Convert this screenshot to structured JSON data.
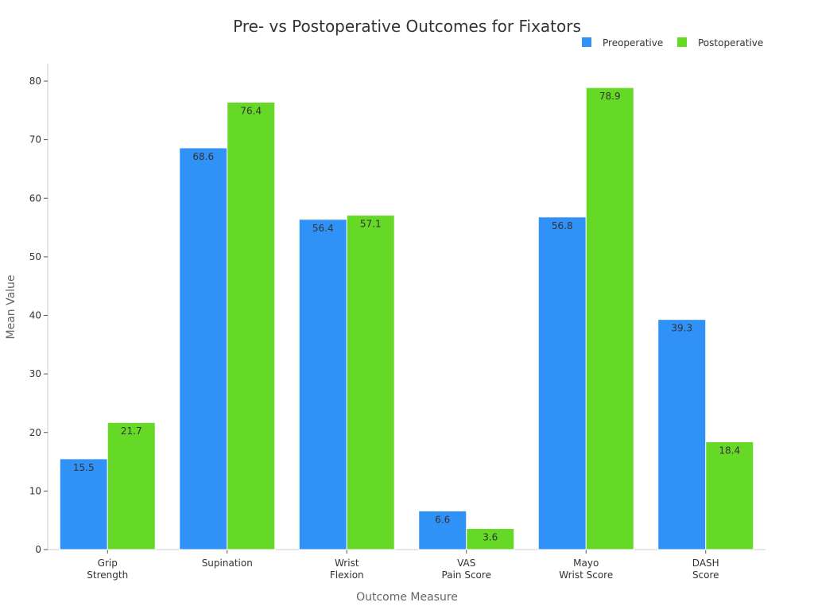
{
  "chart_data": {
    "type": "bar",
    "title": "Pre- vs Postoperative Outcomes for Fixators",
    "xlabel": "Outcome Measure",
    "ylabel": "Mean Value",
    "categories": [
      [
        "Grip",
        "Strength"
      ],
      [
        "Supination"
      ],
      [
        "Wrist",
        "Flexion"
      ],
      [
        "VAS",
        "Pain Score"
      ],
      [
        "Mayo",
        "Wrist Score"
      ],
      [
        "DASH",
        "Score"
      ]
    ],
    "series": [
      {
        "name": "Preoperative",
        "color": "#3091f7",
        "values": [
          15.5,
          68.6,
          56.4,
          6.6,
          56.8,
          39.3
        ]
      },
      {
        "name": "Postoperative",
        "color": "#66d926",
        "values": [
          21.7,
          76.4,
          57.1,
          3.6,
          78.9,
          18.4
        ]
      }
    ],
    "ylim": [
      0,
      80
    ],
    "yticks": [
      0,
      10,
      20,
      30,
      40,
      50,
      60,
      70,
      80
    ],
    "grid": false,
    "legend": "top-right"
  }
}
